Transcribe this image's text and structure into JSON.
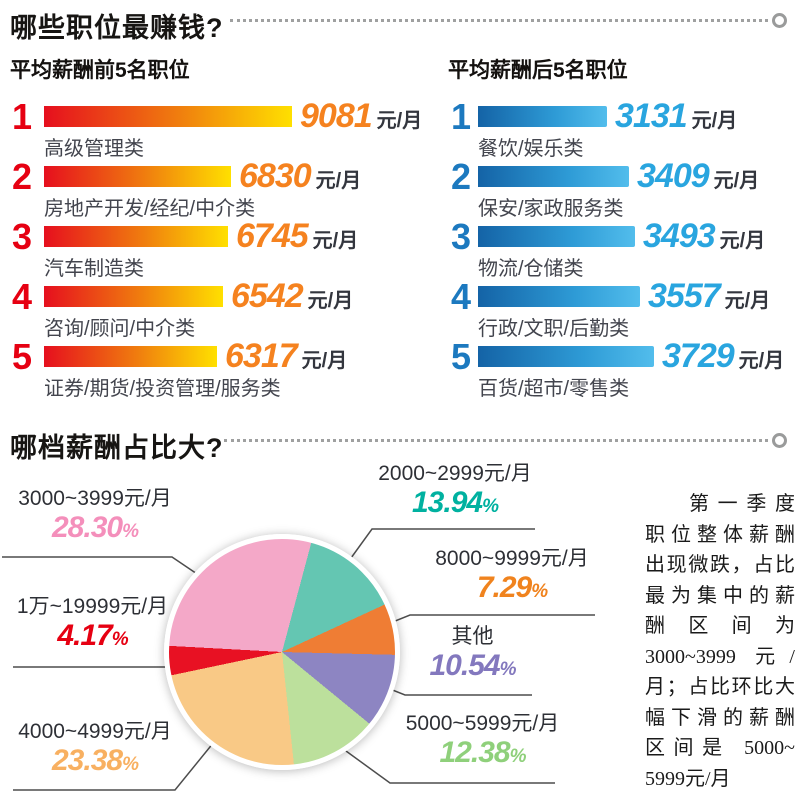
{
  "section1_title": "哪些职位最赚钱?",
  "section2_title": "哪档薪酬占比大?",
  "ui": {
    "percent_sign": "%"
  },
  "colors": {
    "rank_left": "#E60012",
    "value_left": "#F5821F",
    "rank_right": "#1C79BF",
    "value_right": "#29A5DF",
    "left_bar_gradient": [
      "#E60F1E",
      "#F07F0E",
      "#FFE000"
    ],
    "right_bar_gradient": [
      "#1463A6",
      "#2E9BD6",
      "#52BDEC"
    ]
  },
  "note_lines": [
    "第一季度",
    "职位整体薪酬",
    "出现微跌，占比",
    "最为集中的薪",
    "酬区间为",
    "3000~3999 元/",
    "月；占比环比大",
    "幅下滑的薪酬",
    "区间是 5000~",
    "5999元/月"
  ],
  "chart_data": [
    {
      "type": "bar",
      "title": "平均薪酬前5名职位",
      "orientation": "horizontal",
      "unit": "元/月",
      "ranks": [
        "1",
        "2",
        "3",
        "4",
        "5"
      ],
      "categories": [
        "高级管理类",
        "房地产开发/经纪/中介类",
        "汽车制造类",
        "咨询/顾问/中介类",
        "证券/期货/投资管理/服务类"
      ],
      "values": [
        9081,
        6830,
        6745,
        6542,
        6317
      ]
    },
    {
      "type": "bar",
      "title": "平均薪酬后5名职位",
      "orientation": "horizontal",
      "unit": "元/月",
      "ranks": [
        "1",
        "2",
        "3",
        "4",
        "5"
      ],
      "categories": [
        "餐饮/娱乐类",
        "保安/家政服务类",
        "物流/仓储类",
        "行政/文职/后勤类",
        "百货/超市/零售类"
      ],
      "values": [
        3131,
        3409,
        3493,
        3557,
        3729
      ]
    },
    {
      "type": "pie",
      "title": "哪档薪酬占比大?",
      "start_angle_deg": 15,
      "slices": [
        {
          "label": "2000~2999元/月",
          "value": 13.94,
          "pct": "13.94",
          "color": "#64C6B2",
          "pct_color": "#00B1A0"
        },
        {
          "label": "8000~9999元/月",
          "value": 7.29,
          "pct": "7.29",
          "color": "#EF7D34",
          "pct_color": "#F0831E"
        },
        {
          "label": "其他",
          "value": 10.54,
          "pct": "10.54",
          "color": "#8D85C2",
          "pct_color": "#8378BE"
        },
        {
          "label": "5000~5999元/月",
          "value": 12.38,
          "pct": "12.38",
          "color": "#BCE09C",
          "pct_color": "#8FD07B"
        },
        {
          "label": "4000~4999元/月",
          "value": 23.38,
          "pct": "23.38",
          "color": "#F9C986",
          "pct_color": "#F8B061"
        },
        {
          "label": "1万~19999元/月",
          "value": 4.17,
          "pct": "4.17",
          "color": "#E81123",
          "pct_color": "#E60012"
        },
        {
          "label": "3000~3999元/月",
          "value": 28.3,
          "pct": "28.30",
          "color": "#F4A8C8",
          "pct_color": "#F48FBB"
        }
      ]
    }
  ]
}
